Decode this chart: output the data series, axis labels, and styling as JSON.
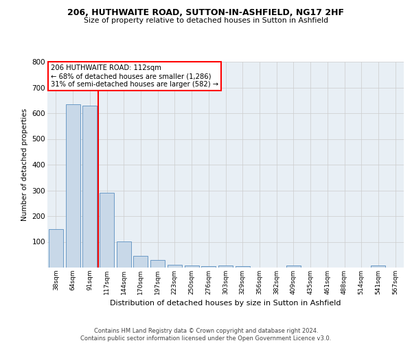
{
  "title1": "206, HUTHWAITE ROAD, SUTTON-IN-ASHFIELD, NG17 2HF",
  "title2": "Size of property relative to detached houses in Sutton in Ashfield",
  "xlabel": "Distribution of detached houses by size in Sutton in Ashfield",
  "ylabel": "Number of detached properties",
  "footer": "Contains HM Land Registry data © Crown copyright and database right 2024.\nContains public sector information licensed under the Open Government Licence v3.0.",
  "bar_labels": [
    "38sqm",
    "64sqm",
    "91sqm",
    "117sqm",
    "144sqm",
    "170sqm",
    "197sqm",
    "223sqm",
    "250sqm",
    "276sqm",
    "303sqm",
    "329sqm",
    "356sqm",
    "382sqm",
    "409sqm",
    "435sqm",
    "461sqm",
    "488sqm",
    "514sqm",
    "541sqm",
    "567sqm"
  ],
  "bar_values": [
    150,
    635,
    630,
    290,
    102,
    45,
    30,
    12,
    9,
    6,
    7,
    5,
    0,
    0,
    8,
    0,
    0,
    0,
    0,
    8,
    0
  ],
  "bar_color": "#c8d8e8",
  "bar_edge_color": "#5a8fc0",
  "vline_x": 2.5,
  "vline_color": "red",
  "annotation_text": "206 HUTHWAITE ROAD: 112sqm\n← 68% of detached houses are smaller (1,286)\n31% of semi-detached houses are larger (582) →",
  "annotation_box_color": "white",
  "annotation_box_edge": "red",
  "ylim": [
    0,
    800
  ],
  "yticks": [
    100,
    200,
    300,
    400,
    500,
    600,
    700,
    800
  ],
  "grid_color": "#cccccc",
  "bg_color": "#e8eff5",
  "fig_bg_color": "#ffffff"
}
